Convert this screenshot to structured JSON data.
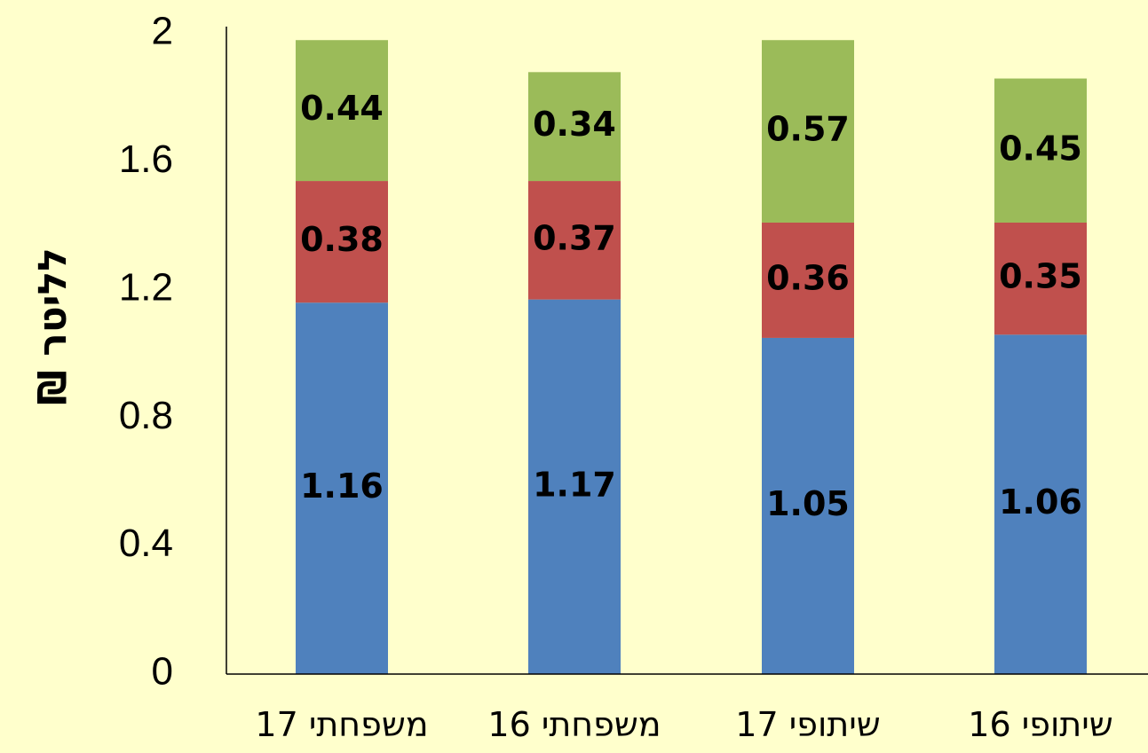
{
  "chart_data": {
    "type": "bar",
    "stacked": true,
    "categories": [
      "משפחתי 17",
      "משפחתי 16",
      "שיתופי 17",
      "שיתופי 16"
    ],
    "series": [
      {
        "values": [
          1.16,
          1.17,
          1.05,
          1.06
        ],
        "color": "#4f81bd"
      },
      {
        "values": [
          0.38,
          0.37,
          0.36,
          0.35
        ],
        "color": "#c0504d"
      },
      {
        "values": [
          0.44,
          0.34,
          0.57,
          0.45
        ],
        "color": "#9bbb59"
      }
    ],
    "data_labels": [
      [
        "1.16",
        "1.17",
        "1.05",
        "1.06"
      ],
      [
        "0.38",
        "0.37",
        "0.36",
        "0.35"
      ],
      [
        "0.44",
        "0.34",
        "0.57",
        "0.45"
      ]
    ],
    "ylabel": "₪ לליטר",
    "xlabel": "",
    "ylim": [
      0,
      2
    ],
    "yticks": [
      "0",
      "0.4",
      "0.8",
      "1.2",
      "1.6",
      "2"
    ],
    "ytick_values": [
      0,
      0.4,
      0.8,
      1.2,
      1.6,
      2
    ],
    "grid": false,
    "legend": "none",
    "background": "#ffffcc"
  }
}
